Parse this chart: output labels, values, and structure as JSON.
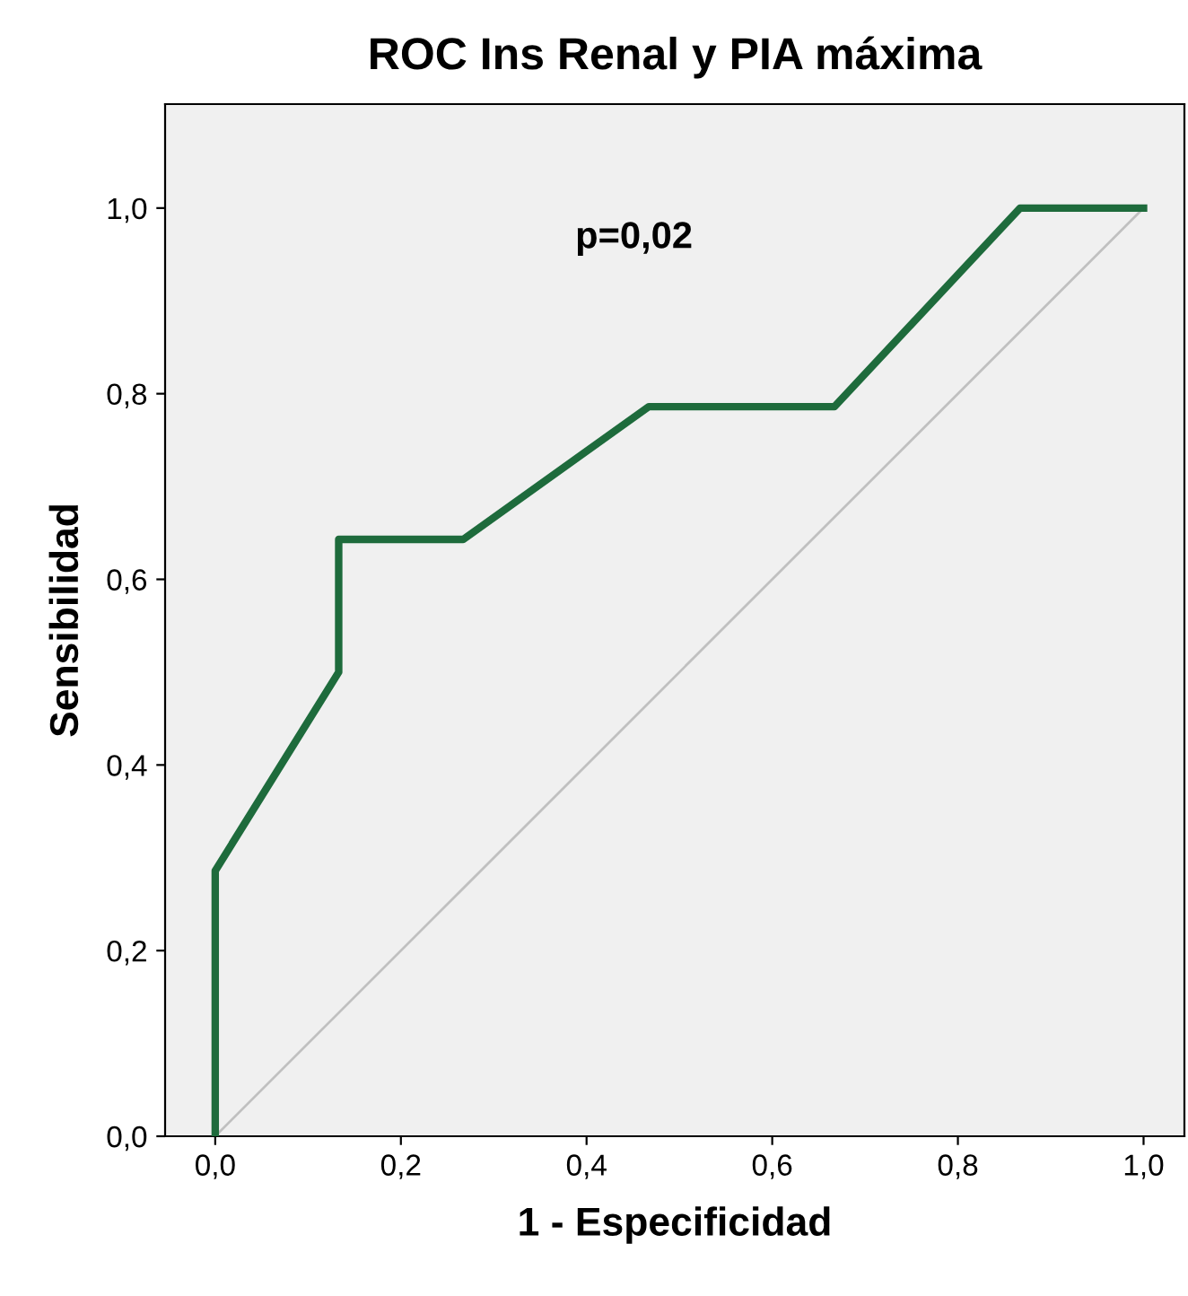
{
  "chart_data": {
    "type": "line",
    "title": "ROC Ins Renal y PIA máxima",
    "xlabel": "1 - Especificidad",
    "ylabel": "Sensibilidad",
    "series": [
      {
        "color": "#1e6b3c",
        "x": [
          0,
          0,
          0.133,
          0.133,
          0.267,
          0.467,
          0.667,
          0.867,
          1
        ],
        "values": [
          0,
          0.286,
          0.5,
          0.643,
          0.643,
          0.786,
          0.786,
          1,
          1
        ]
      },
      {
        "color": "#c0c0c0",
        "x": [
          0,
          1
        ],
        "values": [
          0,
          1
        ]
      }
    ],
    "annotations": [
      "p=0,02"
    ],
    "xlim": [
      -0.054,
      1.044
    ],
    "ylim": [
      0,
      1.112
    ],
    "xticks": [
      {
        "value": 0,
        "label": "0,0"
      },
      {
        "value": 0.2,
        "label": "0,2"
      },
      {
        "value": 0.4,
        "label": "0,4"
      },
      {
        "value": 0.6,
        "label": "0,6"
      },
      {
        "value": 0.8,
        "label": "0,8"
      },
      {
        "value": 1,
        "label": "1,0"
      }
    ],
    "yticks": [
      {
        "value": 0,
        "label": "0,0"
      },
      {
        "value": 0.2,
        "label": "0,2"
      },
      {
        "value": 0.4,
        "label": "0,4"
      },
      {
        "value": 0.6,
        "label": "0,6"
      },
      {
        "value": 0.8,
        "label": "0,8"
      },
      {
        "value": 1,
        "label": "1,0"
      }
    ],
    "grid": false,
    "legend": false
  }
}
